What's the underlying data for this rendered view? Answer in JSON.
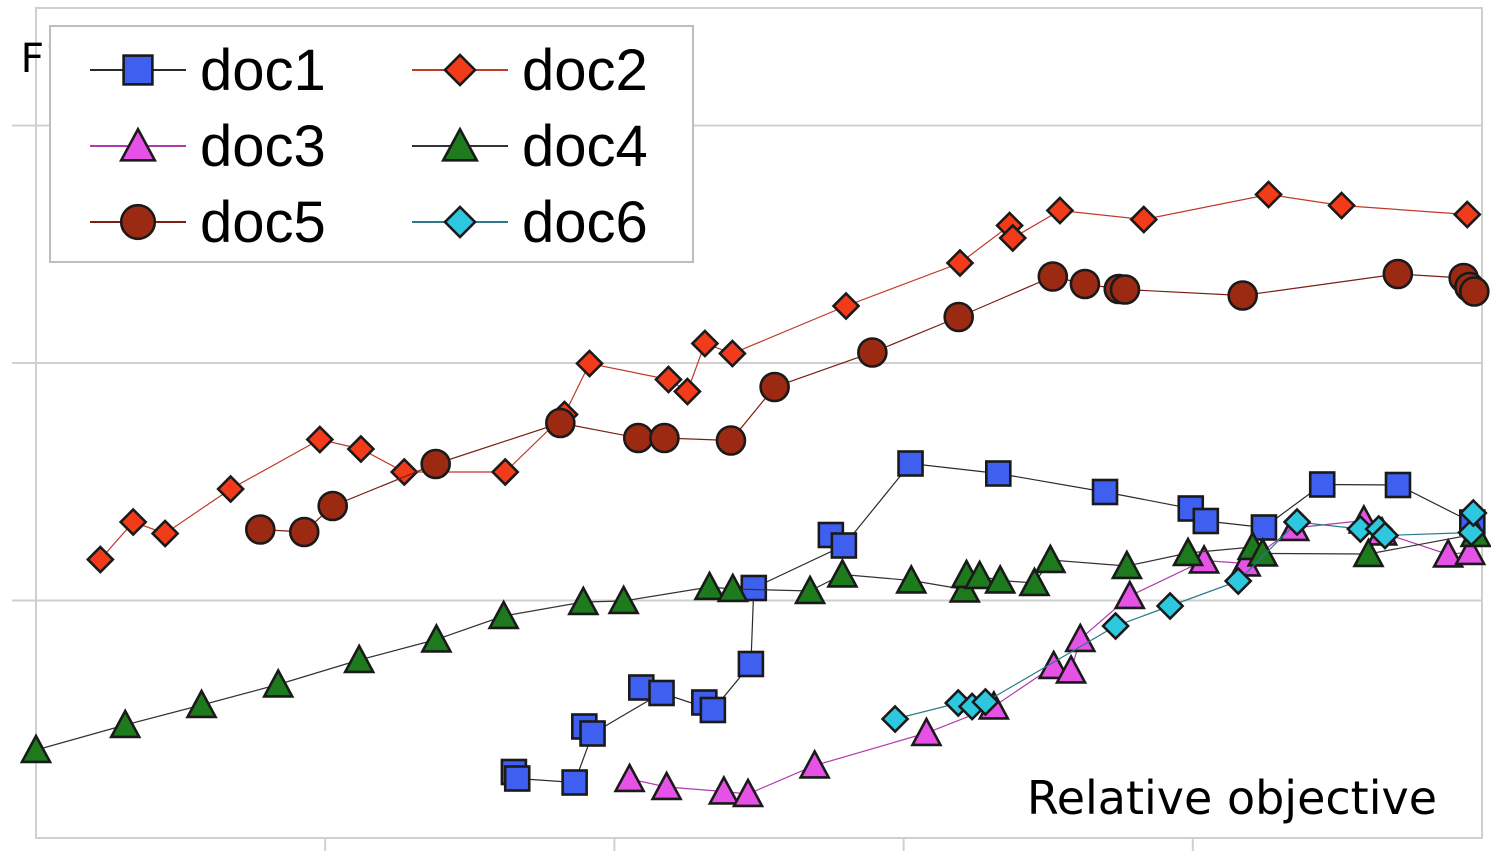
{
  "chart_data": {
    "type": "scatter",
    "xlabel": "Relative objective",
    "ylabel": "F1",
    "grid": true,
    "legend_position": "top-left",
    "series": [
      {
        "name": "doc1",
        "marker": "square",
        "color": "#3f5ff0",
        "points": [
          [
            0.3305,
            0.132
          ],
          [
            0.3328,
            0.119
          ],
          [
            0.3725,
            0.111
          ],
          [
            0.3792,
            0.223
          ],
          [
            0.3849,
            0.209
          ],
          [
            0.4186,
            0.301
          ],
          [
            0.4326,
            0.29
          ],
          [
            0.4622,
            0.271
          ],
          [
            0.4681,
            0.256
          ],
          [
            0.4944,
            0.348
          ],
          [
            0.4964,
            0.5
          ],
          [
            0.5497,
            0.606
          ],
          [
            0.5587,
            0.585
          ],
          [
            0.6048,
            0.749
          ],
          [
            0.6655,
            0.729
          ],
          [
            0.7393,
            0.692
          ],
          [
            0.7986,
            0.659
          ],
          [
            0.809,
            0.634
          ],
          [
            0.8492,
            0.621
          ],
          [
            0.8895,
            0.707
          ],
          [
            0.9419,
            0.706
          ],
          [
            0.9933,
            0.631
          ]
        ]
      },
      {
        "name": "doc2",
        "marker": "diamond",
        "color": "#f23b1b",
        "points": [
          [
            0.0445,
            0.557
          ],
          [
            0.0672,
            0.632
          ],
          [
            0.0893,
            0.609
          ],
          [
            0.1346,
            0.698
          ],
          [
            0.1963,
            0.797
          ],
          [
            0.2247,
            0.778
          ],
          [
            0.2547,
            0.732
          ],
          [
            0.3245,
            0.732
          ],
          [
            0.3655,
            0.847
          ],
          [
            0.3828,
            0.949
          ],
          [
            0.4374,
            0.917
          ],
          [
            0.4505,
            0.893
          ],
          [
            0.4626,
            0.989
          ],
          [
            0.4816,
            0.969
          ],
          [
            0.5602,
            1.064
          ],
          [
            0.639,
            1.15
          ],
          [
            0.6733,
            1.225
          ],
          [
            0.6755,
            1.2
          ],
          [
            0.7081,
            1.255
          ],
          [
            0.7661,
            1.237
          ],
          [
            0.8524,
            1.287
          ],
          [
            0.9029,
            1.265
          ],
          [
            0.9898,
            1.247
          ]
        ]
      },
      {
        "name": "doc3",
        "marker": "triangle",
        "color": "#e652e6",
        "points": [
          [
            0.4105,
            0.118
          ],
          [
            0.4361,
            0.102
          ],
          [
            0.4757,
            0.093
          ],
          [
            0.4924,
            0.088
          ],
          [
            0.5385,
            0.145
          ],
          [
            0.6158,
            0.21
          ],
          [
            0.6624,
            0.263
          ],
          [
            0.7038,
            0.344
          ],
          [
            0.7158,
            0.335
          ],
          [
            0.7222,
            0.398
          ],
          [
            0.7564,
            0.484
          ],
          [
            0.8078,
            0.555
          ],
          [
            0.8365,
            0.549
          ],
          [
            0.8701,
            0.62
          ],
          [
            0.9183,
            0.635
          ],
          [
            0.9309,
            0.611
          ],
          [
            0.9766,
            0.567
          ],
          [
            0.9918,
            0.572
          ]
        ]
      },
      {
        "name": "doc4",
        "marker": "triangle",
        "color": "#1d7a1d",
        "points": [
          [
            0.0,
            0.176
          ],
          [
            0.0617,
            0.226
          ],
          [
            0.1145,
            0.266
          ],
          [
            0.1675,
            0.307
          ],
          [
            0.2235,
            0.356
          ],
          [
            0.2769,
            0.397
          ],
          [
            0.3234,
            0.444
          ],
          [
            0.3785,
            0.472
          ],
          [
            0.4064,
            0.474
          ],
          [
            0.4658,
            0.502
          ],
          [
            0.4819,
            0.498
          ],
          [
            0.5353,
            0.494
          ],
          [
            0.5577,
            0.527
          ],
          [
            0.6053,
            0.515
          ],
          [
            0.6423,
            0.497
          ],
          [
            0.6435,
            0.526
          ],
          [
            0.6526,
            0.524
          ],
          [
            0.6668,
            0.515
          ],
          [
            0.6905,
            0.51
          ],
          [
            0.7015,
            0.556
          ],
          [
            0.7544,
            0.544
          ],
          [
            0.7967,
            0.57
          ],
          [
            0.8414,
            0.582
          ],
          [
            0.8483,
            0.569
          ],
          [
            0.9215,
            0.568
          ],
          [
            0.9956,
            0.608
          ]
        ]
      },
      {
        "name": "doc5",
        "marker": "circle",
        "color": "#9c2a12",
        "points": [
          [
            0.1551,
            0.617
          ],
          [
            0.1855,
            0.612
          ],
          [
            0.2052,
            0.664
          ],
          [
            0.2764,
            0.748
          ],
          [
            0.3626,
            0.83
          ],
          [
            0.4165,
            0.8
          ],
          [
            0.4346,
            0.8
          ],
          [
            0.4806,
            0.795
          ],
          [
            0.5108,
            0.902
          ],
          [
            0.5784,
            0.971
          ],
          [
            0.6381,
            1.042
          ],
          [
            0.7032,
            1.123
          ],
          [
            0.7254,
            1.108
          ],
          [
            0.7488,
            1.098
          ],
          [
            0.7531,
            1.097
          ],
          [
            0.8345,
            1.085
          ],
          [
            0.9418,
            1.128
          ],
          [
            0.9873,
            1.12
          ],
          [
            0.9913,
            1.102
          ],
          [
            0.9947,
            1.093
          ]
        ]
      },
      {
        "name": "doc6",
        "marker": "diamond",
        "color": "#2ec7e0",
        "points": [
          [
            0.5941,
            0.238
          ],
          [
            0.6378,
            0.27
          ],
          [
            0.6474,
            0.263
          ],
          [
            0.6566,
            0.272
          ],
          [
            0.7466,
            0.424
          ],
          [
            0.7843,
            0.464
          ],
          [
            0.8314,
            0.514
          ],
          [
            0.8721,
            0.632
          ],
          [
            0.9159,
            0.618
          ],
          [
            0.9286,
            0.618
          ],
          [
            0.9329,
            0.605
          ],
          [
            0.9927,
            0.611
          ],
          [
            0.994,
            0.65
          ]
        ]
      }
    ],
    "connection_order": {
      "doc1": [
        [
          0.3328,
          0.119
        ],
        [
          0.3725,
          0.111
        ],
        [
          0.3849,
          0.209
        ],
        [
          0.4326,
          0.29
        ],
        [
          0.4681,
          0.256
        ],
        [
          0.4944,
          0.348
        ],
        [
          0.4964,
          0.5
        ],
        [
          0.5587,
          0.585
        ],
        [
          0.6048,
          0.749
        ],
        [
          0.6655,
          0.729
        ],
        [
          0.7393,
          0.692
        ],
        [
          0.7986,
          0.659
        ],
        [
          0.809,
          0.634
        ],
        [
          0.8492,
          0.621
        ],
        [
          0.8895,
          0.707
        ],
        [
          0.9419,
          0.706
        ],
        [
          0.9933,
          0.631
        ]
      ]
    }
  }
}
